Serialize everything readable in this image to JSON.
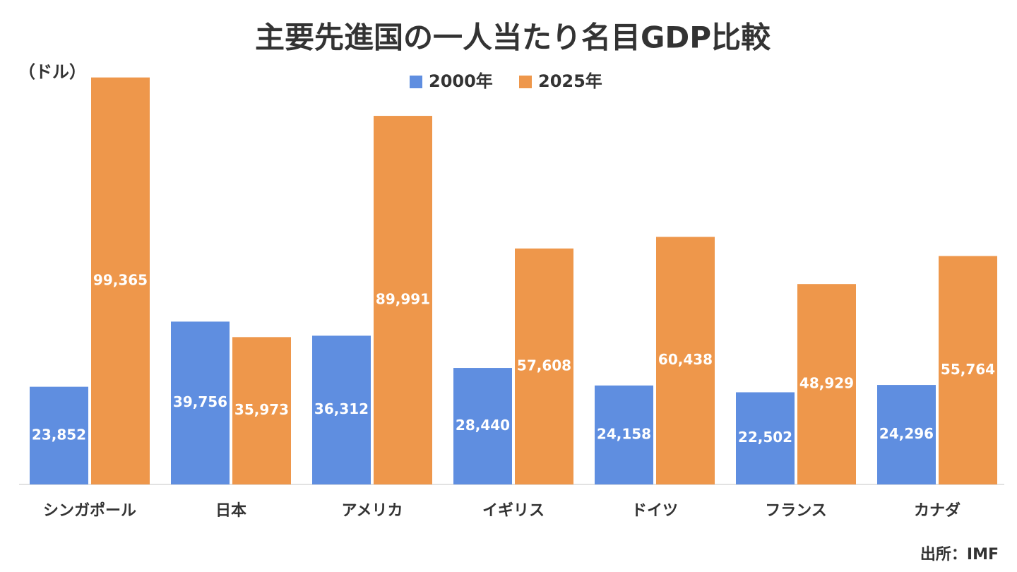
{
  "chart_data": {
    "type": "bar",
    "title": "主要先進国の一人当たり名目GDP比較",
    "y_label": "（ドル）",
    "source": "出所：IMF",
    "legend": "top",
    "categories": [
      "シンガポール",
      "日本",
      "アメリカ",
      "イギリス",
      "ドイツ",
      "フランス",
      "カナダ"
    ],
    "series": [
      {
        "name": "2000年",
        "color": "#5f8ee0",
        "values": [
          23852,
          39756,
          36312,
          28440,
          24158,
          22502,
          24296
        ],
        "value_labels": [
          "23,852",
          "39,756",
          "36,312",
          "28,440",
          "24,158",
          "22,502",
          "24,296"
        ]
      },
      {
        "name": "2025年",
        "color": "#ee974b",
        "values": [
          99365,
          35973,
          89991,
          57608,
          60438,
          48929,
          55764
        ],
        "value_labels": [
          "99,365",
          "35,973",
          "89,991",
          "57,608",
          "60,438",
          "48,929",
          "55,764"
        ]
      }
    ],
    "ylim": [
      0,
      100000
    ]
  }
}
